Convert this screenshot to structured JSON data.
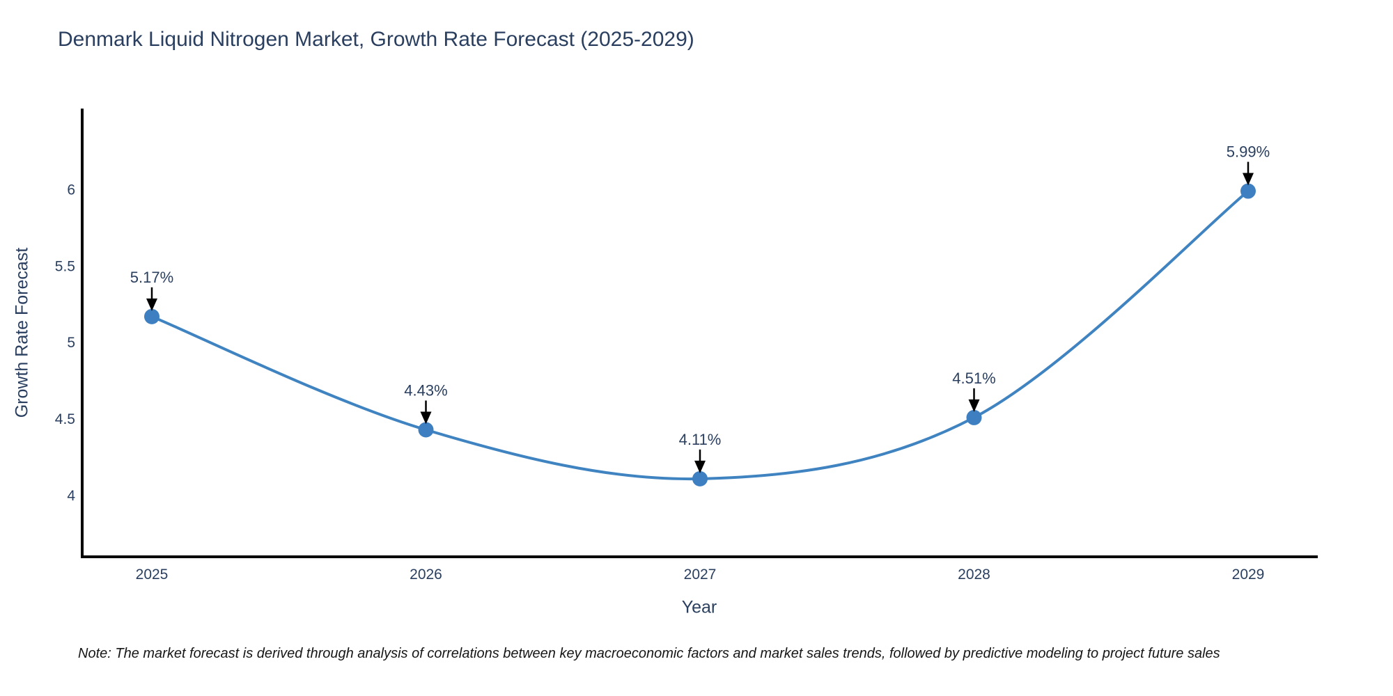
{
  "chart_data": {
    "type": "line",
    "title": "Denmark Liquid Nitrogen Market, Growth Rate Forecast (2025-2029)",
    "xlabel": "Year",
    "ylabel": "Growth Rate Forecast",
    "x": [
      2025,
      2026,
      2027,
      2028,
      2029
    ],
    "values": [
      5.17,
      4.43,
      4.11,
      4.51,
      5.99
    ],
    "point_labels": [
      "5.17%",
      "4.43%",
      "4.11%",
      "4.51%",
      "5.99%"
    ],
    "x_ticks": [
      "2025",
      "2026",
      "2027",
      "2028",
      "2029"
    ],
    "y_ticks": [
      "4",
      "4.5",
      "5",
      "5.5",
      "6"
    ],
    "y_tick_values": [
      4,
      4.5,
      5,
      5.5,
      6
    ],
    "ylim": [
      3.6,
      6.52
    ],
    "grid": false,
    "legend": "none",
    "line_shape": "spline",
    "line_color": "#3f83c1",
    "marker_color": "#3d7fc0",
    "arrow_color": "#000000",
    "axis_color": "#000000",
    "text_color": "#2a3f5f",
    "note": "Note: The market forecast is derived through analysis of correlations between key macroeconomic factors and market sales trends, followed by predictive modeling to project future sales"
  }
}
